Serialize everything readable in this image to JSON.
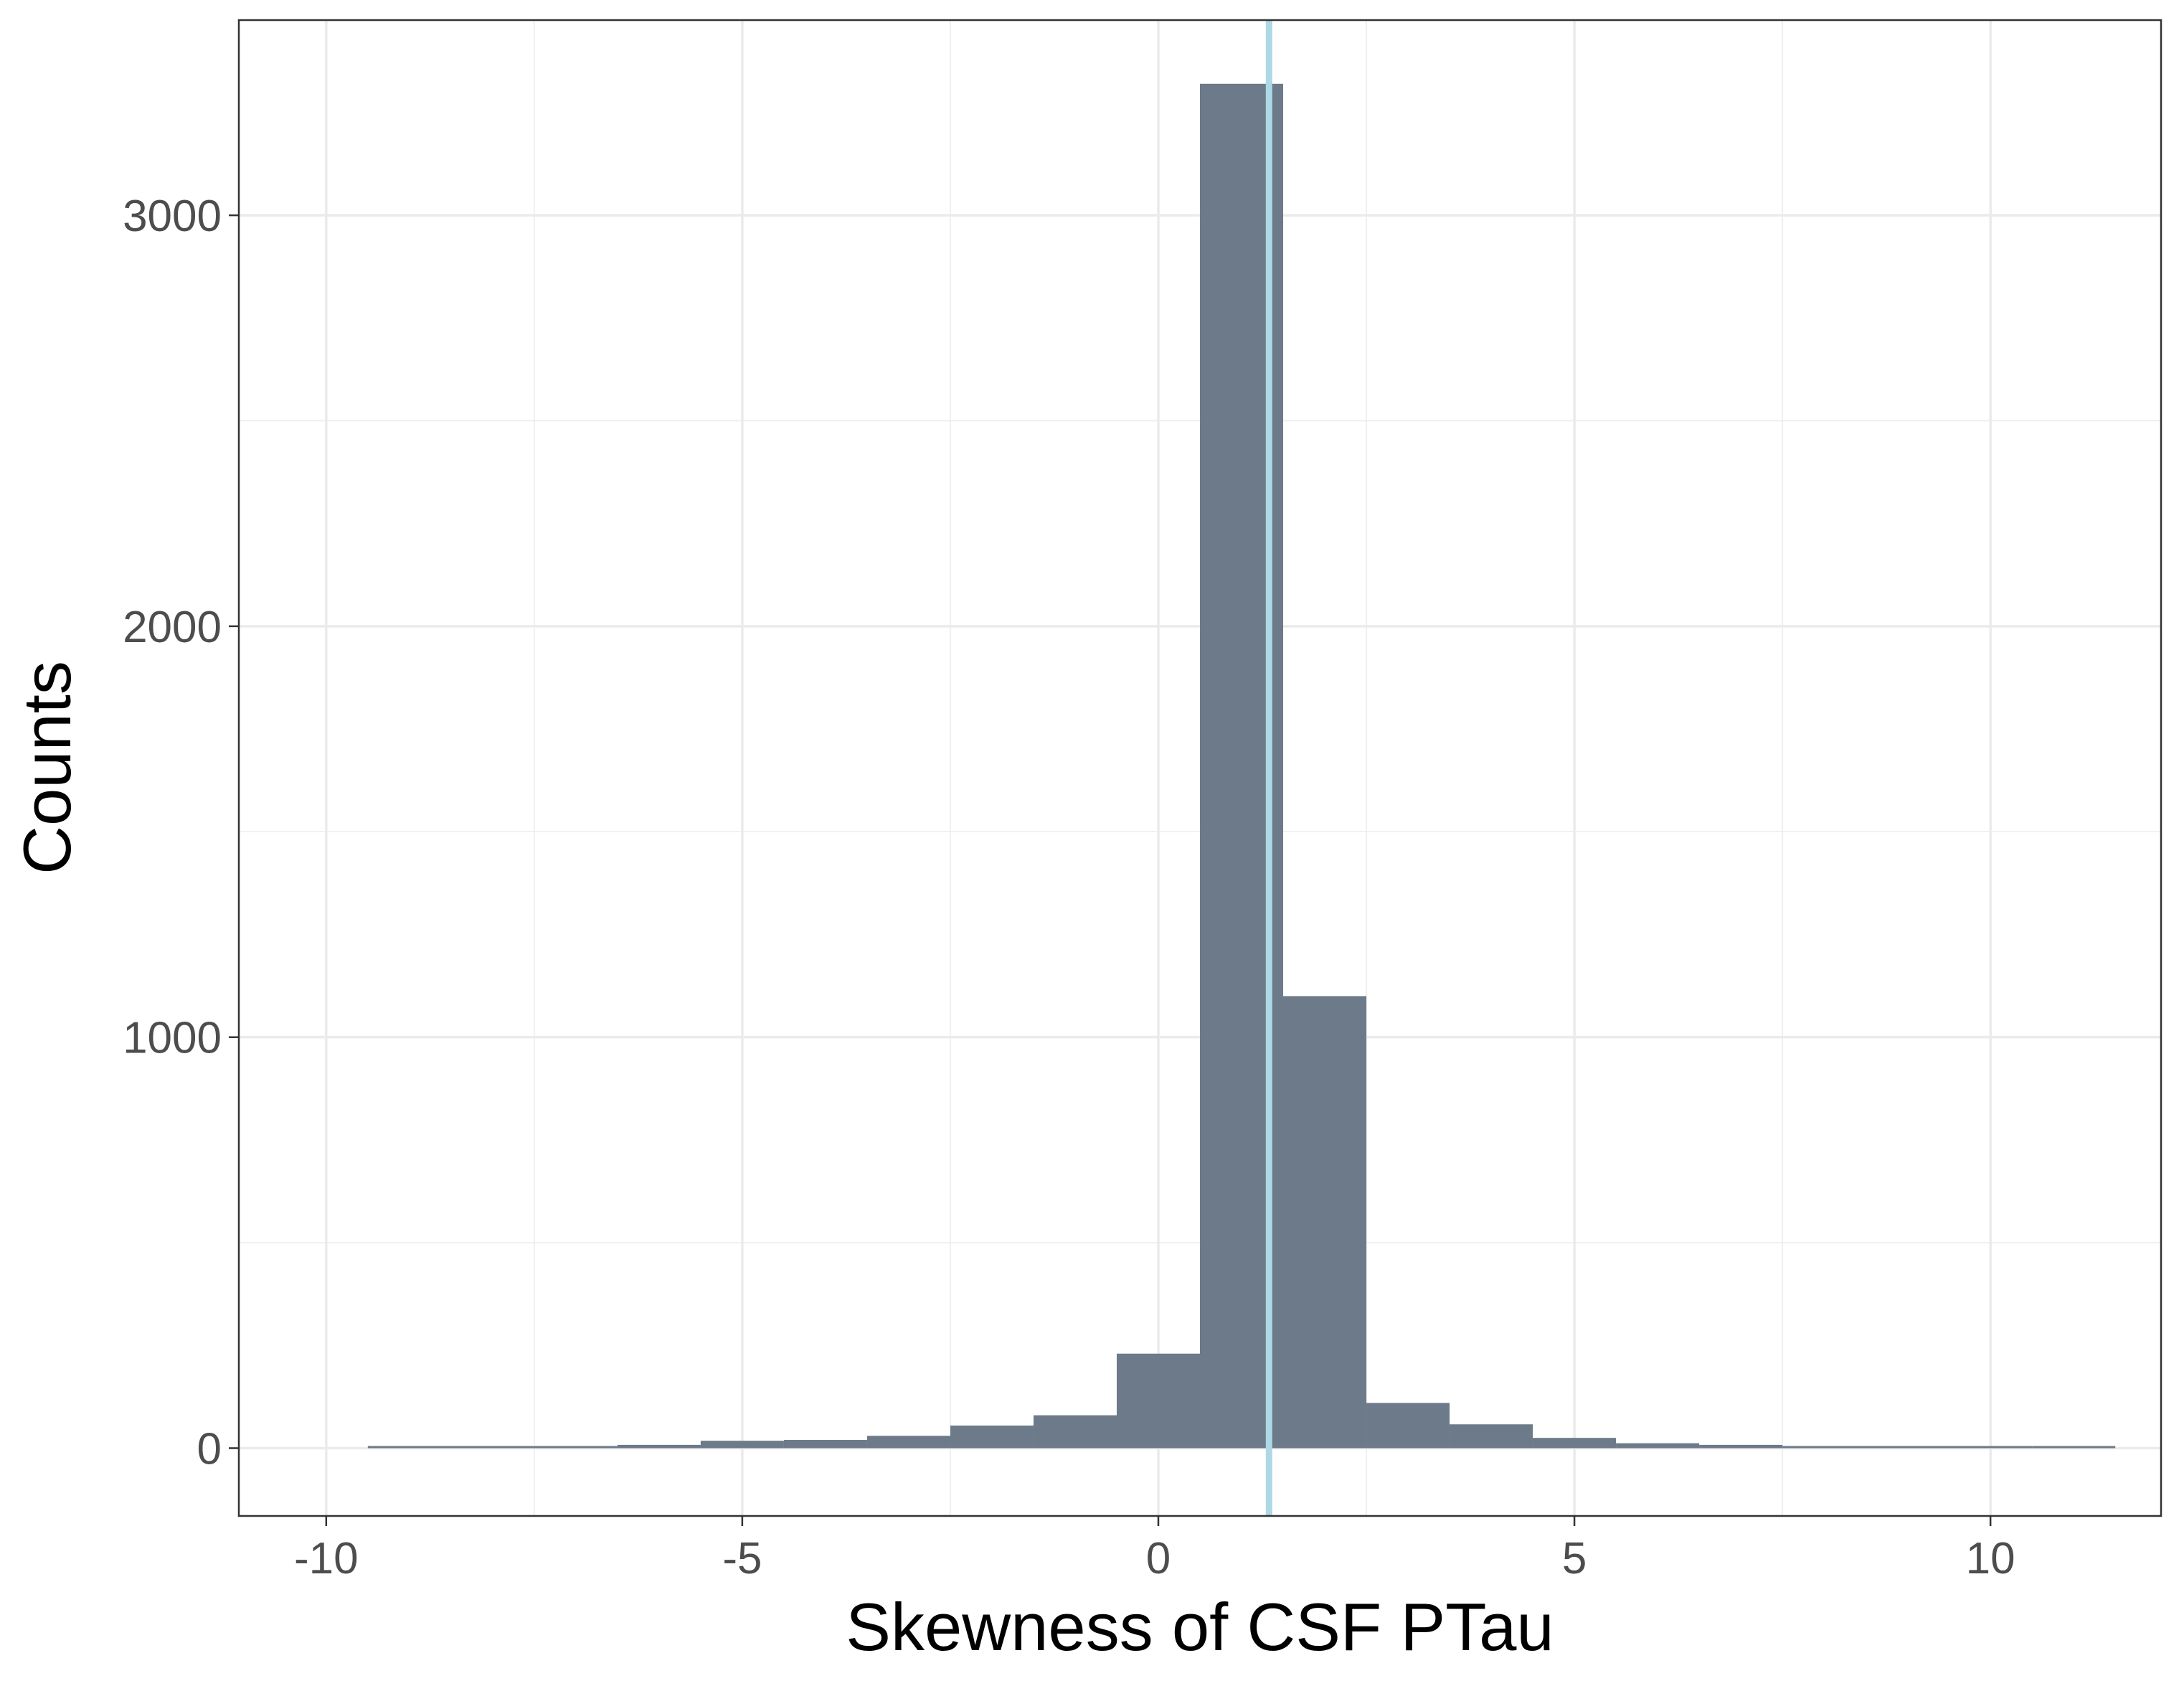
{
  "chart_data": {
    "type": "bar",
    "subtype": "histogram",
    "xlabel": "Skewness of CSF PTau",
    "ylabel": "Counts",
    "xlim": [
      -11.05,
      12.05
    ],
    "ylim": [
      -165,
      3475
    ],
    "x_ticks": [
      -10,
      -5,
      0,
      5,
      10
    ],
    "x_tick_labels": [
      "-10",
      "-5",
      "0",
      "5",
      "10"
    ],
    "y_ticks": [
      0,
      1000,
      2000,
      3000
    ],
    "y_tick_labels": [
      "0",
      "1000",
      "2000",
      "3000"
    ],
    "x_minor_gridlines": [
      -7.5,
      -2.5,
      2.5,
      7.5
    ],
    "y_minor_gridlines": [
      500,
      1500,
      2500
    ],
    "grid": true,
    "legend": "none",
    "bin_width": 1,
    "bins": [
      {
        "center": -9,
        "count": 2
      },
      {
        "center": -8,
        "count": 3
      },
      {
        "center": -7,
        "count": 4
      },
      {
        "center": -6,
        "count": 8
      },
      {
        "center": -5,
        "count": 18
      },
      {
        "center": -4,
        "count": 20
      },
      {
        "center": -3,
        "count": 30
      },
      {
        "center": -2,
        "count": 55
      },
      {
        "center": -1,
        "count": 80
      },
      {
        "center": 0,
        "count": 230
      },
      {
        "center": 1,
        "count": 3320
      },
      {
        "center": 2,
        "count": 1100
      },
      {
        "center": 3,
        "count": 110
      },
      {
        "center": 4,
        "count": 58
      },
      {
        "center": 5,
        "count": 25
      },
      {
        "center": 6,
        "count": 12
      },
      {
        "center": 7,
        "count": 8
      },
      {
        "center": 8,
        "count": 4
      },
      {
        "center": 9,
        "count": 3
      },
      {
        "center": 10,
        "count": 2
      },
      {
        "center": 11,
        "count": 3
      }
    ],
    "reference_line": {
      "x": 1.33,
      "color": "#add8e6"
    },
    "bar_color": "#6c7a89",
    "grid_color": "#ebebeb"
  }
}
